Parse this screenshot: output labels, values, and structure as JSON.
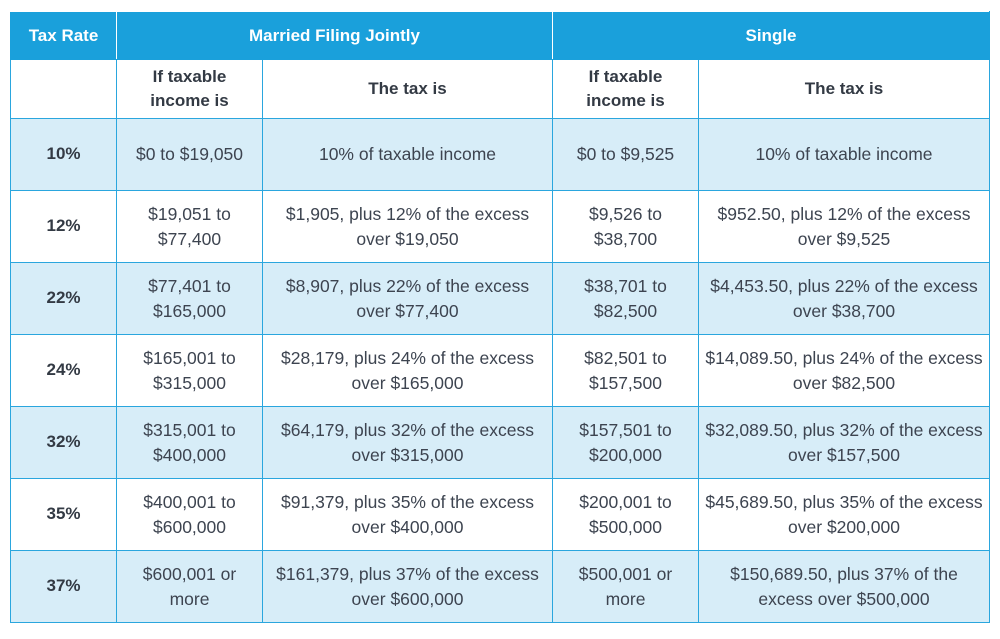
{
  "header": {
    "tax_rate": "Tax Rate",
    "married": "Married Filing Jointly",
    "single": "Single"
  },
  "subheader": {
    "blank": "",
    "mfj_income": "If taxable income is",
    "mfj_tax": "The tax is",
    "single_income": "If taxable income is",
    "single_tax": "The tax is"
  },
  "rows": [
    {
      "rate": "10%",
      "mfj_income": "$0 to $19,050",
      "mfj_tax": "10% of taxable income",
      "single_income": "$0 to $9,525",
      "single_tax": "10% of taxable income"
    },
    {
      "rate": "12%",
      "mfj_income": "$19,051 to $77,400",
      "mfj_tax": "$1,905, plus 12% of the excess over $19,050",
      "single_income": "$9,526 to $38,700",
      "single_tax": "$952.50, plus 12% of the excess over $9,525"
    },
    {
      "rate": "22%",
      "mfj_income": "$77,401 to $165,000",
      "mfj_tax": "$8,907, plus 22% of the excess over $77,400",
      "single_income": "$38,701 to $82,500",
      "single_tax": "$4,453.50, plus 22% of the excess over $38,700"
    },
    {
      "rate": "24%",
      "mfj_income": "$165,001 to $315,000",
      "mfj_tax": "$28,179, plus 24% of the excess over $165,000",
      "single_income": "$82,501 to $157,500",
      "single_tax": "$14,089.50, plus 24% of the excess over $82,500"
    },
    {
      "rate": "32%",
      "mfj_income": "$315,001 to $400,000",
      "mfj_tax": "$64,179, plus 32% of the excess over $315,000",
      "single_income": "$157,501 to $200,000",
      "single_tax": "$32,089.50, plus 32% of the excess over $157,500"
    },
    {
      "rate": "35%",
      "mfj_income": "$400,001 to $600,000",
      "mfj_tax": "$91,379, plus 35% of the excess over $400,000",
      "single_income": "$200,001 to $500,000",
      "single_tax": "$45,689.50, plus 35% of the excess over $200,000"
    },
    {
      "rate": "37%",
      "mfj_income": "$600,001 or more",
      "mfj_tax": "$161,379, plus 37% of the excess over $600,000",
      "single_income": "$500,001 or more",
      "single_tax": "$150,689.50, plus 37% of the excess over $500,000"
    }
  ]
}
